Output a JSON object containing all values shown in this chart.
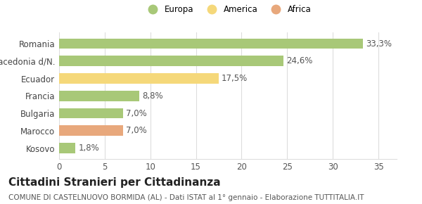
{
  "categories": [
    "Kosovo",
    "Marocco",
    "Bulgaria",
    "Francia",
    "Ecuador",
    "Macedonia d/N.",
    "Romania"
  ],
  "values": [
    1.8,
    7.0,
    7.0,
    8.8,
    17.5,
    24.6,
    33.3
  ],
  "labels": [
    "1,8%",
    "7,0%",
    "7,0%",
    "8,8%",
    "17,5%",
    "24,6%",
    "33,3%"
  ],
  "bar_colors": [
    "#a8c878",
    "#e8a87c",
    "#a8c878",
    "#a8c878",
    "#f5d87a",
    "#a8c878",
    "#a8c878"
  ],
  "legend_items": [
    {
      "label": "Europa",
      "color": "#a8c878"
    },
    {
      "label": "America",
      "color": "#f5d87a"
    },
    {
      "label": "Africa",
      "color": "#e8a87c"
    }
  ],
  "xlim": [
    0,
    37
  ],
  "xticks": [
    0,
    5,
    10,
    15,
    20,
    25,
    30,
    35
  ],
  "title": "Cittadini Stranieri per Cittadinanza",
  "subtitle": "COMUNE DI CASTELNUOVO BORMIDA (AL) - Dati ISTAT al 1° gennaio - Elaborazione TUTTITALIA.IT",
  "background_color": "#ffffff",
  "grid_color": "#dddddd",
  "bar_height": 0.6,
  "label_fontsize": 8.5,
  "tick_fontsize": 8.5,
  "title_fontsize": 11,
  "subtitle_fontsize": 7.5
}
